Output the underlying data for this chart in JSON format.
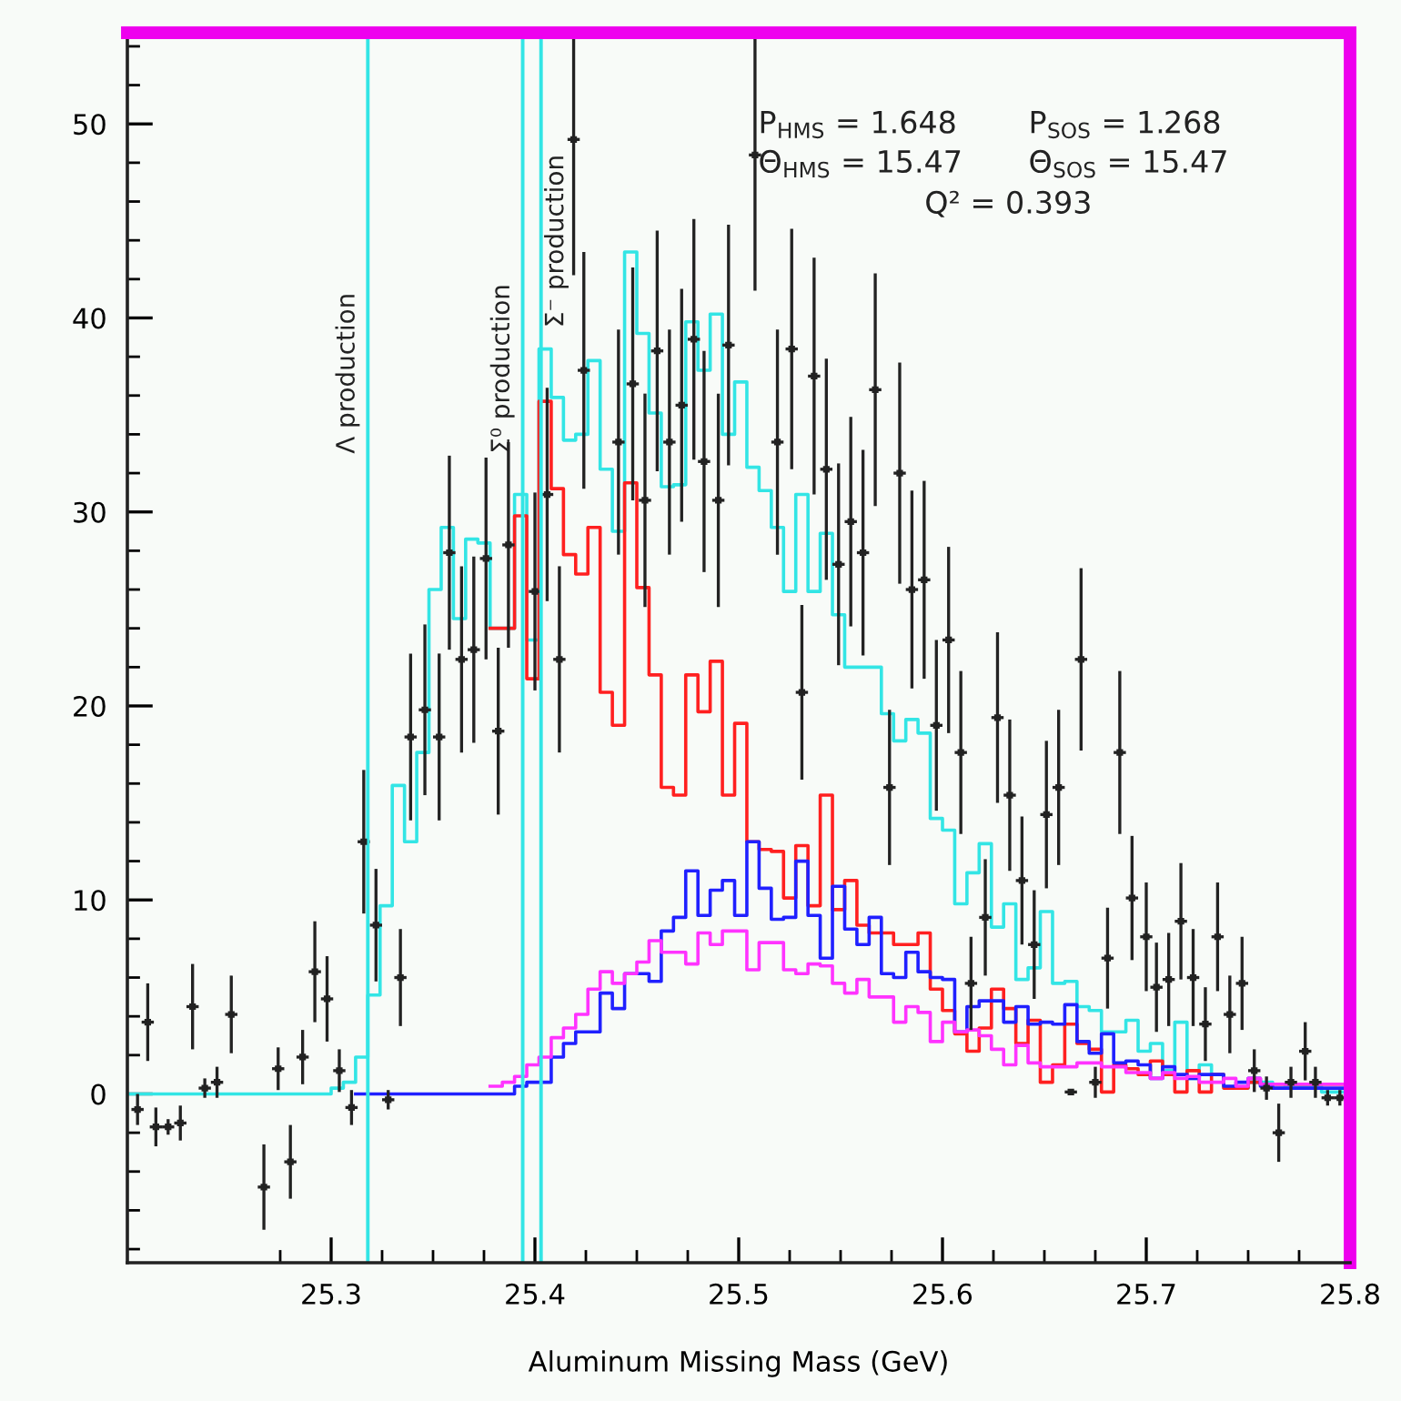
{
  "chart_data": {
    "type": "histogram",
    "xlabel": "Aluminum Missing Mass (GeV)",
    "xlim": [
      25.2,
      25.8
    ],
    "ylim": [
      -8.7,
      54.7
    ],
    "xticks": [
      {
        "value": 25.275,
        "label": null
      },
      25.3,
      {
        "value": 25.325,
        "label": null
      },
      {
        "value": 25.35,
        "label": null
      },
      {
        "value": 25.375,
        "label": null
      },
      25.4,
      {
        "value": 25.425,
        "label": null
      },
      {
        "value": 25.45,
        "label": null
      },
      {
        "value": 25.475,
        "label": null
      },
      25.5,
      {
        "value": 25.525,
        "label": null
      },
      {
        "value": 25.55,
        "label": null
      },
      {
        "value": 25.575,
        "label": null
      },
      25.6,
      {
        "value": 25.625,
        "label": null
      },
      {
        "value": 25.65,
        "label": null
      },
      {
        "value": 25.675,
        "label": null
      },
      25.7,
      {
        "value": 25.725,
        "label": null
      },
      {
        "value": 25.75,
        "label": null
      },
      {
        "value": 25.775,
        "label": null
      },
      25.8
    ],
    "yticks": [
      {
        "value": -8,
        "label": null
      },
      {
        "value": -6,
        "label": null
      },
      {
        "value": -4,
        "label": null
      },
      {
        "value": -2,
        "label": null
      },
      0,
      {
        "value": 2,
        "label": null
      },
      {
        "value": 4,
        "label": null
      },
      {
        "value": 6,
        "label": null
      },
      {
        "value": 8,
        "label": null
      },
      10,
      {
        "value": 12,
        "label": null
      },
      {
        "value": 14,
        "label": null
      },
      {
        "value": 16,
        "label": null
      },
      {
        "value": 18,
        "label": null
      },
      20,
      {
        "value": 22,
        "label": null
      },
      {
        "value": 24,
        "label": null
      },
      {
        "value": 26,
        "label": null
      },
      {
        "value": 28,
        "label": null
      },
      30,
      {
        "value": 32,
        "label": null
      },
      {
        "value": 34,
        "label": null
      },
      {
        "value": 36,
        "label": null
      },
      {
        "value": 38,
        "label": null
      },
      40,
      {
        "value": 42,
        "label": null
      },
      {
        "value": 44,
        "label": null
      },
      {
        "value": 46,
        "label": null
      },
      {
        "value": 48,
        "label": null
      },
      50,
      {
        "value": 52,
        "label": null
      },
      {
        "value": 54,
        "label": null
      }
    ],
    "annotations": [
      "P$_{HMS}$ = 1.648",
      "P$_{SOS}$ = 1.268",
      "Θ$_{HMS}$ = 15.47",
      "Θ$_{SOS}$ = 15.47",
      "Q² = 0.393"
    ],
    "ref_lines": [
      {
        "axis": "x",
        "value": 25.318,
        "label": "Λ production",
        "color": "#33e5e5"
      },
      {
        "axis": "x",
        "value": 25.394,
        "label": "Σ⁰ production",
        "color": "#33e5e5"
      },
      {
        "axis": "x",
        "value": 25.403,
        "label": "Σ⁻ production",
        "color": "#33e5e5"
      }
    ],
    "bins": [
      25.2,
      25.3,
      25.306,
      25.312,
      25.318,
      25.324,
      25.33,
      25.336,
      25.342,
      25.348,
      25.354,
      25.36,
      25.366,
      25.372,
      25.378,
      25.384,
      25.39,
      25.396,
      25.402,
      25.408,
      25.414,
      25.42,
      25.426,
      25.432,
      25.438,
      25.444,
      25.45,
      25.456,
      25.462,
      25.468,
      25.474,
      25.48,
      25.486,
      25.492,
      25.498,
      25.504,
      25.51,
      25.516,
      25.522,
      25.528,
      25.534,
      25.54,
      25.546,
      25.552,
      25.558,
      25.564,
      25.57,
      25.576,
      25.582,
      25.588,
      25.594,
      25.6,
      25.606,
      25.612,
      25.618,
      25.624,
      25.63,
      25.636,
      25.642,
      25.648,
      25.654,
      25.66,
      25.666,
      25.672,
      25.678,
      25.684,
      25.69,
      25.696,
      25.702,
      25.708,
      25.714,
      25.72,
      25.726,
      25.732,
      25.738,
      25.744,
      25.75,
      25.756,
      25.762,
      25.768,
      25.774,
      25.78,
      25.786,
      25.792,
      25.798
    ],
    "series": [
      {
        "color": "#33e5e5",
        "values": [
          0,
          0.3,
          0.6,
          1.9,
          5.1,
          9.7,
          15.9,
          13.0,
          17.6,
          26.0,
          29.2,
          24.5,
          28.6,
          28.4,
          24.0,
          24.0,
          30.9,
          23.4,
          38.4,
          35.9,
          33.7,
          34.0,
          37.8,
          32.2,
          29.0,
          43.4,
          39.2,
          35.1,
          31.3,
          31.4,
          39.8,
          37.3,
          40.2,
          34.0,
          36.7,
          32.3,
          31.1,
          29.2,
          25.9,
          30.9,
          25.9,
          28.9,
          24.7,
          22.0,
          22.0,
          22.0,
          19.6,
          18.2,
          19.3,
          18.6,
          14.2,
          13.6,
          9.8,
          11.4,
          12.9,
          8.6,
          9.8,
          5.9,
          6.5,
          9.4,
          5.7,
          5.8,
          4.5,
          4.3,
          3.2,
          3.2,
          3.8,
          2.2,
          2.6,
          1.2,
          3.7,
          0.8,
          1.5,
          1.0,
          0.3,
          0.3,
          0.6,
          0.6,
          0.3,
          0.4,
          0.4,
          0.4,
          0.1,
          0.1
        ]
      },
      {
        "color": "#ff2020",
        "bins": [
          25.378,
          25.384,
          25.39,
          25.396,
          25.402,
          25.408,
          25.414,
          25.42,
          25.426,
          25.432,
          25.438,
          25.444,
          25.45,
          25.456,
          25.462,
          25.468,
          25.474,
          25.48,
          25.486,
          25.492,
          25.498,
          25.504,
          25.51,
          25.516,
          25.522,
          25.528,
          25.534,
          25.54,
          25.546,
          25.552,
          25.558,
          25.564,
          25.57,
          25.576,
          25.582,
          25.588,
          25.594,
          25.6,
          25.606,
          25.612,
          25.618,
          25.624,
          25.63,
          25.636,
          25.642,
          25.648,
          25.654,
          25.66,
          25.666,
          25.672,
          25.678,
          25.684,
          25.69,
          25.696,
          25.702,
          25.708,
          25.714,
          25.72,
          25.726,
          25.732,
          25.738,
          25.744,
          25.75,
          25.756,
          25.762,
          25.768,
          25.774,
          25.78,
          25.786,
          25.792,
          25.798
        ],
        "values": [
          24.0,
          24.0,
          29.8,
          21.4,
          35.7,
          31.2,
          27.8,
          26.8,
          29.2,
          20.7,
          19.0,
          31.5,
          26.1,
          21.6,
          15.8,
          15.4,
          21.6,
          19.7,
          22.3,
          15.4,
          19.1,
          13.0,
          12.6,
          12.5,
          10.1,
          12.8,
          9.7,
          15.4,
          9.5,
          11.0,
          8.7,
          8.3,
          8.3,
          7.7,
          7.7,
          8.3,
          5.4,
          4.3,
          3.1,
          2.2,
          3.4,
          5.4,
          4.4,
          2.6,
          3.8,
          0.6,
          1.5,
          3.6,
          2.6,
          2.3,
          0.1,
          1.5,
          1.3,
          1.0,
          1.7,
          1.0,
          0.1,
          1.2,
          0.1,
          1.0,
          0.3,
          0.3,
          0.6,
          0.5,
          0.5,
          0.5,
          0.5,
          0.5,
          0.5,
          0.5
        ]
      },
      {
        "color": "#2020ff",
        "bins": [
          25.312,
          25.318,
          25.324,
          25.33,
          25.336,
          25.342,
          25.348,
          25.354,
          25.36,
          25.366,
          25.372,
          25.378,
          25.384,
          25.39,
          25.396,
          25.402,
          25.408,
          25.414,
          25.42,
          25.426,
          25.432,
          25.438,
          25.444,
          25.45,
          25.456,
          25.462,
          25.468,
          25.474,
          25.48,
          25.486,
          25.492,
          25.498,
          25.504,
          25.51,
          25.516,
          25.522,
          25.528,
          25.534,
          25.54,
          25.546,
          25.552,
          25.558,
          25.564,
          25.57,
          25.576,
          25.582,
          25.588,
          25.594,
          25.6,
          25.606,
          25.612,
          25.618,
          25.624,
          25.63,
          25.636,
          25.642,
          25.648,
          25.654,
          25.66,
          25.666,
          25.672,
          25.678,
          25.684,
          25.69,
          25.696,
          25.702,
          25.708,
          25.714,
          25.72,
          25.726,
          25.732,
          25.738,
          25.744,
          25.75,
          25.756,
          25.762,
          25.768,
          25.774,
          25.78,
          25.786,
          25.792,
          25.798
        ],
        "values": [
          0,
          0,
          0,
          0,
          0,
          0,
          0,
          0,
          0,
          0,
          0,
          0,
          0,
          0.4,
          0.6,
          0.6,
          1.9,
          2.6,
          3.2,
          3.2,
          5.2,
          4.4,
          6.2,
          6.2,
          5.8,
          8.4,
          9.1,
          11.5,
          9.2,
          10.5,
          11.0,
          9.2,
          13.0,
          10.6,
          9.0,
          9.1,
          12.0,
          9.2,
          7.0,
          10.7,
          8.5,
          7.7,
          9.1,
          6.2,
          6.0,
          7.3,
          6.3,
          6.0,
          5.9,
          3.2,
          4.5,
          4.8,
          4.8,
          3.7,
          4.5,
          3.6,
          3.7,
          3.6,
          4.6,
          2.7,
          2.1,
          3.1,
          1.6,
          1.7,
          1.5,
          0.8,
          1.4,
          1.0,
          0.8,
          1.0,
          1.0,
          0.4,
          0.6,
          0.8,
          0.4,
          0.3,
          0.3,
          0.3,
          0.3,
          0.3,
          0.3
        ]
      },
      {
        "color": "#ff33ff",
        "bins": [
          25.378,
          25.384,
          25.39,
          25.396,
          25.402,
          25.408,
          25.414,
          25.42,
          25.426,
          25.432,
          25.438,
          25.444,
          25.45,
          25.456,
          25.462,
          25.468,
          25.474,
          25.48,
          25.486,
          25.492,
          25.498,
          25.504,
          25.51,
          25.516,
          25.522,
          25.528,
          25.534,
          25.54,
          25.546,
          25.552,
          25.558,
          25.564,
          25.57,
          25.576,
          25.582,
          25.588,
          25.594,
          25.6,
          25.606,
          25.612,
          25.618,
          25.624,
          25.63,
          25.636,
          25.642,
          25.648,
          25.654,
          25.66,
          25.666,
          25.672,
          25.678,
          25.684,
          25.69,
          25.696,
          25.702,
          25.708,
          25.714,
          25.72,
          25.726,
          25.732,
          25.738,
          25.744,
          25.75,
          25.756,
          25.762,
          25.768,
          25.774,
          25.78,
          25.786,
          25.792,
          25.798
        ],
        "values": [
          0.4,
          0.6,
          0.9,
          1.5,
          1.9,
          2.9,
          3.4,
          4.1,
          5.4,
          6.3,
          5.7,
          6.2,
          6.8,
          7.9,
          7.3,
          7.3,
          6.7,
          8.3,
          7.7,
          8.4,
          8.4,
          6.4,
          7.8,
          7.8,
          6.4,
          6.2,
          6.7,
          6.6,
          5.7,
          5.2,
          5.9,
          5.0,
          5.0,
          3.7,
          4.5,
          4.2,
          2.7,
          3.7,
          3.2,
          3.3,
          3.0,
          2.3,
          1.5,
          2.5,
          1.6,
          1.4,
          1.4,
          1.4,
          1.6,
          1.6,
          1.4,
          1.4,
          1.1,
          1.1,
          0.8,
          1.1,
          0.8,
          0.9,
          0.6,
          0.6,
          0.8,
          0.4,
          0.8,
          0.5,
          0.5,
          0.5,
          0.5,
          0.5,
          0.5,
          0.5
        ]
      },
      {
        "type": "scatter",
        "color": "#222222",
        "marker": "square",
        "x": [
          25.205,
          25.21,
          25.214,
          25.22,
          25.226,
          25.232,
          25.238,
          25.244,
          25.251,
          25.267,
          25.274,
          25.28,
          25.286,
          25.292,
          25.298,
          25.304,
          25.31,
          25.316,
          25.322,
          25.328,
          25.334,
          25.339,
          25.346,
          25.353,
          25.358,
          25.364,
          25.37,
          25.376,
          25.382,
          25.387,
          25.4,
          25.406,
          25.412,
          25.419,
          25.424,
          25.441,
          25.448,
          25.454,
          25.46,
          25.466,
          25.472,
          25.478,
          25.483,
          25.49,
          25.495,
          25.508,
          25.519,
          25.526,
          25.531,
          25.537,
          25.543,
          25.549,
          25.555,
          25.561,
          25.567,
          25.574,
          25.579,
          25.585,
          25.591,
          25.597,
          25.603,
          25.609,
          25.614,
          25.621,
          25.627,
          25.633,
          25.639,
          25.645,
          25.651,
          25.657,
          25.663,
          25.668,
          25.675,
          25.681,
          25.687,
          25.693,
          25.7,
          25.705,
          25.711,
          25.717,
          25.723,
          25.729,
          25.735,
          25.741,
          25.747,
          25.753,
          25.759,
          25.765,
          25.771,
          25.778,
          25.783,
          25.789,
          25.795
        ],
        "values": [
          -0.8,
          3.7,
          -1.7,
          -1.7,
          -1.5,
          4.5,
          0.3,
          0.6,
          4.1,
          -4.8,
          1.3,
          -3.5,
          1.9,
          6.3,
          4.9,
          1.2,
          -0.7,
          13.0,
          8.7,
          -0.3,
          6.0,
          18.4,
          19.8,
          18.4,
          27.9,
          22.4,
          22.9,
          27.6,
          18.7,
          28.3,
          25.9,
          30.9,
          22.4,
          49.2,
          37.3,
          33.6,
          36.6,
          30.6,
          38.3,
          33.6,
          35.5,
          38.9,
          32.6,
          30.6,
          38.6,
          48.4,
          33.6,
          38.4,
          20.7,
          37.0,
          32.2,
          27.3,
          29.5,
          27.9,
          36.3,
          15.8,
          32.0,
          26.0,
          26.5,
          19.0,
          23.4,
          17.6,
          5.7,
          9.1,
          19.4,
          15.4,
          11.0,
          7.7,
          14.4,
          15.8,
          0.1,
          22.4,
          0.6,
          7.0,
          17.6,
          10.1,
          8.1,
          5.5,
          5.9,
          8.9,
          6.0,
          3.6,
          8.1,
          4.1,
          5.7,
          1.2,
          0.3,
          -2.0,
          0.6,
          2.2,
          0.6,
          -0.2,
          -0.2
        ],
        "errors": [
          0.8,
          2.0,
          1.0,
          0.4,
          0.9,
          2.2,
          0.5,
          0.8,
          2.0,
          2.2,
          1.1,
          1.9,
          1.4,
          2.6,
          2.2,
          1.1,
          0.9,
          3.7,
          2.9,
          0.5,
          2.5,
          4.3,
          4.4,
          4.3,
          5.0,
          4.8,
          4.8,
          5.2,
          4.3,
          5.3,
          5.1,
          5.5,
          4.8,
          7.0,
          6.1,
          5.8,
          6.0,
          5.5,
          6.2,
          5.8,
          6.0,
          6.2,
          5.7,
          5.5,
          6.2,
          7.0,
          5.8,
          6.2,
          4.5,
          6.1,
          5.7,
          5.2,
          5.4,
          5.3,
          6.0,
          4.0,
          5.7,
          5.1,
          5.1,
          4.4,
          4.8,
          4.2,
          2.4,
          3.0,
          4.4,
          3.9,
          3.3,
          2.8,
          3.8,
          4.0,
          null,
          4.7,
          0.8,
          2.6,
          4.2,
          3.2,
          2.8,
          2.3,
          2.4,
          3.0,
          2.5,
          1.9,
          2.8,
          2.0,
          2.4,
          1.1,
          0.6,
          1.5,
          0.8,
          1.5,
          0.8,
          0.4,
          0.4
        ],
        "xerrors": [
          0.003,
          0.003,
          0.003,
          0.003,
          0.003,
          0.003,
          0.003,
          0.003,
          0.003,
          0.003,
          0.003,
          0.003,
          0.003,
          0.003,
          0.003,
          0.003,
          0.003,
          0.003,
          0.003,
          0.003,
          0.003,
          0.003,
          0.003,
          0.003,
          0.003,
          0.003,
          0.003,
          0.003,
          0.003,
          0.003,
          0.003,
          0.003,
          0.003,
          0.003,
          0.003,
          0.003,
          0.003,
          0.003,
          0.003,
          0.003,
          0.003,
          0.003,
          0.003,
          0.003,
          0.003,
          0.003,
          0.003,
          0.003,
          0.003,
          0.003,
          0.003,
          0.003,
          0.003,
          0.003,
          0.003,
          0.003,
          0.003,
          0.003,
          0.003,
          0.003,
          0.003,
          0.003,
          0.003,
          0.003,
          0.003,
          0.003,
          0.003,
          0.003,
          0.003,
          0.003,
          0.003,
          0.003,
          0.003,
          0.003,
          0.003,
          0.003,
          0.003,
          0.003,
          0.003,
          0.003,
          0.003,
          0.003,
          0.003,
          0.003,
          0.003,
          0.003,
          0.003,
          0.003,
          0.003,
          0.003,
          0.003,
          0.003,
          0.003
        ]
      }
    ]
  }
}
